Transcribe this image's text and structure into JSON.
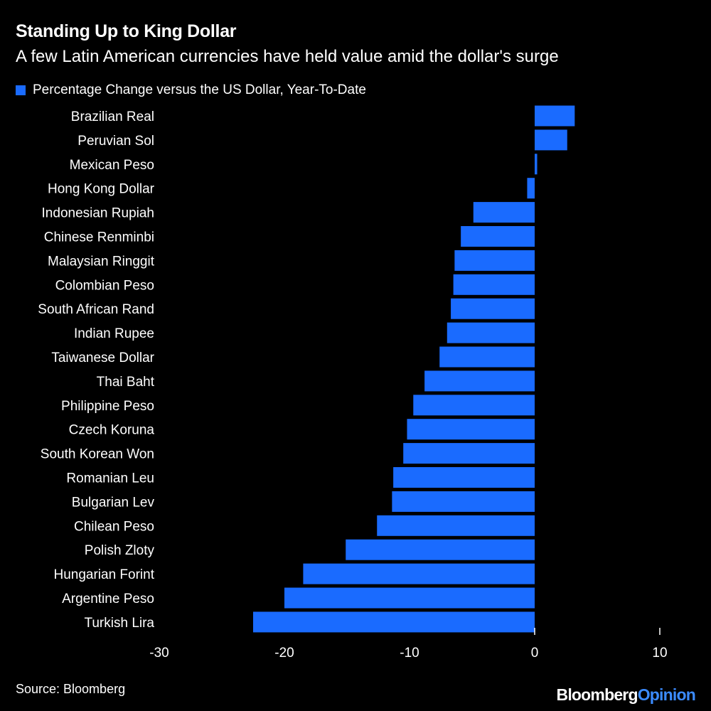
{
  "title": "Standing Up to King Dollar",
  "subtitle": "A few Latin American currencies have held value amid the dollar's surge",
  "source": "Source: Bloomberg",
  "brand": {
    "main": "Bloomberg",
    "accent": "Opinion"
  },
  "colors": {
    "bar": "#1a6bff",
    "background": "#000000",
    "text": "#ffffff",
    "accent": "#3b8bff"
  },
  "chart_data": {
    "type": "bar",
    "orientation": "horizontal",
    "series": [
      {
        "name": "Percentage Change versus the US Dollar, Year-To-Date",
        "values": [
          3.2,
          2.6,
          0.2,
          -0.6,
          -4.9,
          -5.9,
          -6.4,
          -6.5,
          -6.7,
          -7.0,
          -7.6,
          -8.8,
          -9.7,
          -10.2,
          -10.5,
          -11.3,
          -11.4,
          -12.6,
          -15.1,
          -18.5,
          -20.0,
          -22.5
        ]
      }
    ],
    "categories": [
      "Brazilian Real",
      "Peruvian Sol",
      "Mexican Peso",
      "Hong Kong Dollar",
      "Indonesian Rupiah",
      "Chinese Renminbi",
      "Malaysian Ringgit",
      "Colombian Peso",
      "South African Rand",
      "Indian Rupee",
      "Taiwanese Dollar",
      "Thai Baht",
      "Philippine Peso",
      "Czech Koruna",
      "South Korean Won",
      "Romanian Leu",
      "Bulgarian Lev",
      "Chilean Peso",
      "Polish Zloty",
      "Hungarian Forint",
      "Argentine Peso",
      "Turkish Lira"
    ],
    "xlim": [
      -30,
      10
    ],
    "xticks": [
      "-30",
      "-20",
      "-10",
      "0",
      "10"
    ],
    "tick_values": [
      -30,
      -20,
      -10,
      0,
      10
    ],
    "grid": false,
    "legend_position": "top-left"
  }
}
